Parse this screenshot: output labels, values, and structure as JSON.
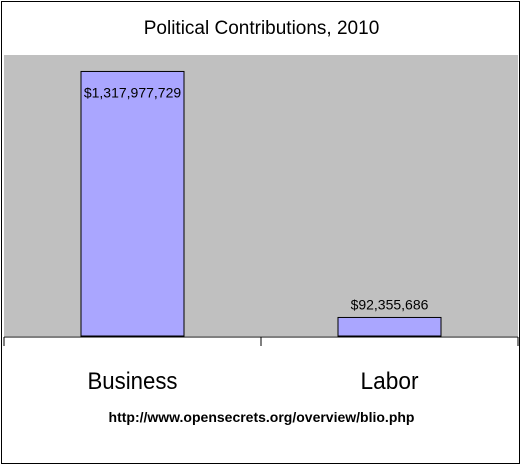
{
  "chart_data": {
    "type": "bar",
    "title": "Political Contributions, 2010",
    "categories": [
      "Business",
      "Labor"
    ],
    "values": [
      1317977729,
      92355686
    ],
    "value_labels": [
      "$1,317,977,729",
      "$92,355,686"
    ],
    "ylim": [
      0,
      1400000000
    ],
    "grid": false,
    "legend": "none",
    "colors": {
      "bar": "#aaa6ff",
      "plot_background": "#c0c0c0",
      "bar_border": "#000000"
    }
  },
  "footer": {
    "source": "http://www.opensecrets.org/overview/blio.php"
  }
}
